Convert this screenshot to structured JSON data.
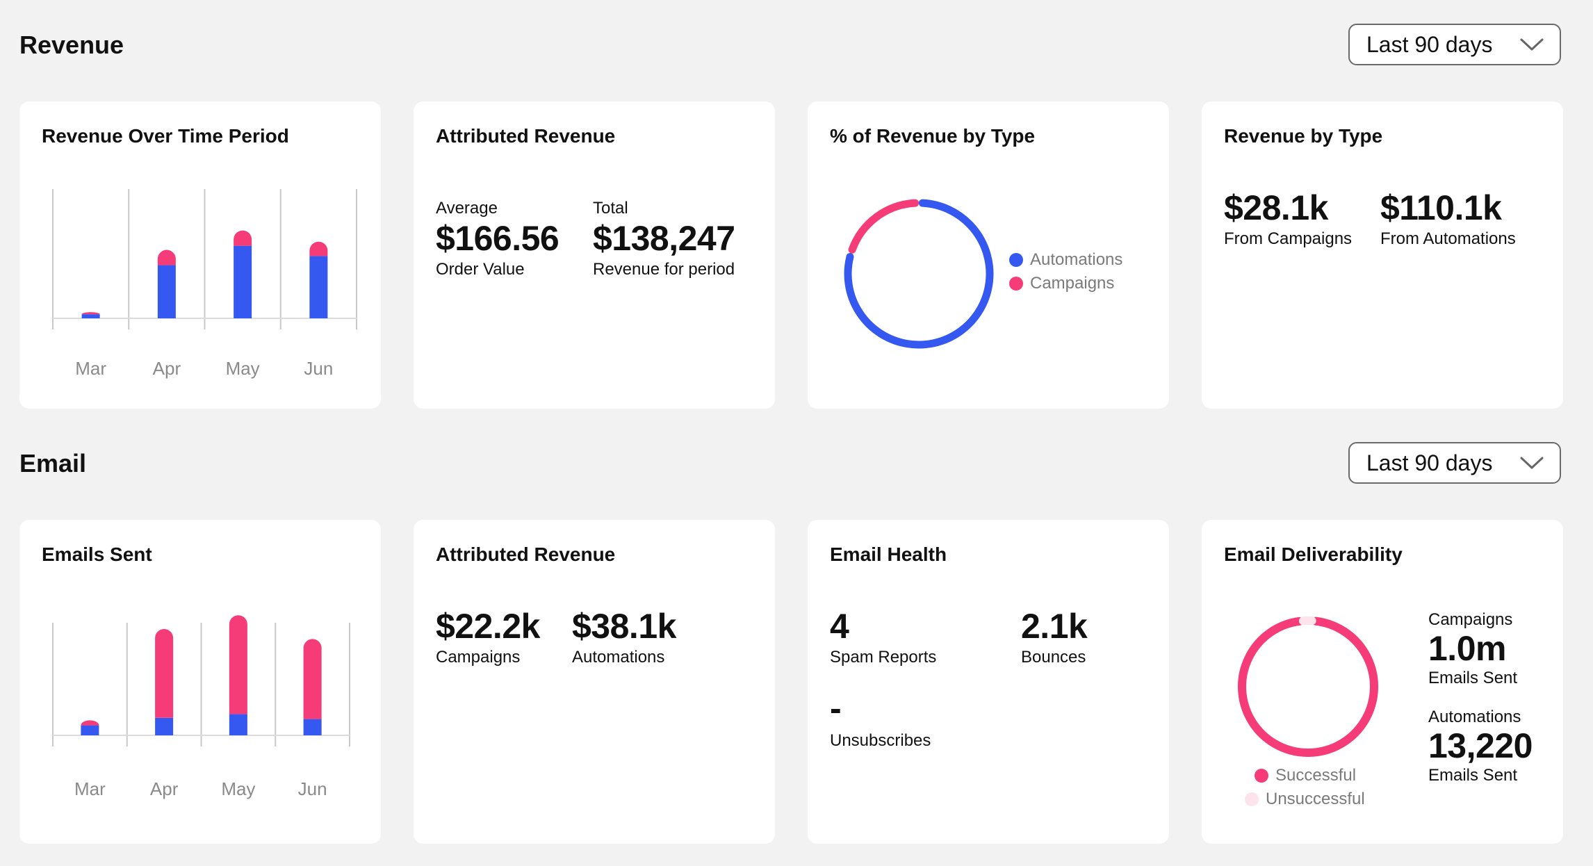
{
  "colors": {
    "automations": "#3558f0",
    "campaigns": "#f53c78",
    "unsuccessful": "#fde3ec"
  },
  "revenue": {
    "section_title": "Revenue",
    "range_select": "Last 90 days",
    "over_time": {
      "title": "Revenue Over Time Period"
    },
    "attributed": {
      "title": "Attributed Revenue",
      "avg_label": "Average",
      "avg_value": "$166.56",
      "avg_sub": "Order Value",
      "total_label": "Total",
      "total_value": "$138,247",
      "total_sub": "Revenue for period"
    },
    "percent_by_type": {
      "title": "% of Revenue by Type",
      "legend": [
        "Automations",
        "Campaigns"
      ]
    },
    "by_type": {
      "title": "Revenue by Type",
      "campaigns_value": "$28.1k",
      "campaigns_label": "From Campaigns",
      "automations_value": "$110.1k",
      "automations_label": "From Automations"
    }
  },
  "email": {
    "section_title": "Email",
    "range_select": "Last 90 days",
    "sent": {
      "title": "Emails Sent"
    },
    "attributed": {
      "title": "Attributed Revenue",
      "campaigns_value": "$22.2k",
      "campaigns_label": "Campaigns",
      "automations_value": "$38.1k",
      "automations_label": "Automations"
    },
    "health": {
      "title": "Email Health",
      "spam_value": "4",
      "spam_label": "Spam Reports",
      "bounces_value": "2.1k",
      "bounces_label": "Bounces",
      "unsub_value": "-",
      "unsub_label": "Unsubscribes"
    },
    "deliverability": {
      "title": "Email Deliverability",
      "legend": [
        "Successful",
        "Unsuccessful"
      ],
      "campaigns_heading": "Campaigns",
      "campaigns_value": "1.0m",
      "campaigns_label": "Emails Sent",
      "automations_heading": "Automations",
      "automations_value": "13,220",
      "automations_label": "Emails Sent"
    }
  },
  "chart_data": [
    {
      "type": "bar",
      "title": "Revenue Over Time Period",
      "stacked": true,
      "categories": [
        "Mar",
        "Apr",
        "May",
        "Jun"
      ],
      "series": [
        {
          "name": "Automations",
          "values": [
            4,
            52,
            71,
            61
          ]
        },
        {
          "name": "Campaigns",
          "values": [
            2,
            15,
            15,
            14
          ]
        }
      ],
      "ylim": [
        0,
        100
      ],
      "grid": true
    },
    {
      "type": "pie",
      "title": "% of Revenue by Type",
      "donut": true,
      "categories": [
        "Automations",
        "Campaigns"
      ],
      "values": [
        79.7,
        20.3
      ]
    },
    {
      "type": "bar",
      "title": "Emails Sent",
      "stacked": true,
      "categories": [
        "Mar",
        "Apr",
        "May",
        "Jun"
      ],
      "series": [
        {
          "name": "Automations",
          "values": [
            8,
            14,
            17,
            13
          ]
        },
        {
          "name": "Campaigns",
          "values": [
            4,
            71,
            79,
            64
          ]
        }
      ],
      "ylim": [
        0,
        100
      ],
      "grid": true
    },
    {
      "type": "pie",
      "title": "Email Deliverability",
      "donut": true,
      "categories": [
        "Successful",
        "Unsuccessful"
      ],
      "values": [
        97,
        3
      ]
    }
  ]
}
